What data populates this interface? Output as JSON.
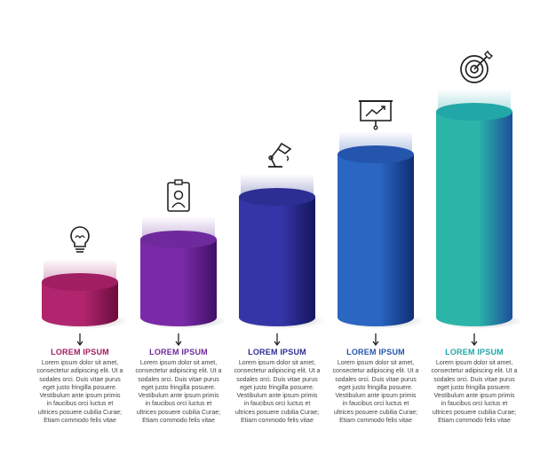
{
  "steps": [
    {
      "icon": "lightbulb-icon",
      "level": 1,
      "title": "LOREM IPSUM",
      "body": "Lorem ipsum dolor sit amet, consectetur adipiscing elit. Ut a sodales orci. Duis vitae purus eget justo fringilla posuere. Vestibulum ante ipsum primis in faucibus orci luctus et ultrices posuere cubilia Curae; Etiam commodo felis vitae",
      "color_light": "#b0256e",
      "color_dark": "#6a0c3c",
      "color_top": "#a11e63"
    },
    {
      "icon": "id-badge-icon",
      "level": 2,
      "title": "LOREM IPSUM",
      "body": "Lorem ipsum dolor sit amet, consectetur adipiscing elit. Ut a sodales orci. Duis vitae purus eget justo fringilla posuere. Vestibulum ante ipsum primis in faucibus orci luctus et ultrices posuere cubilia Curae; Etiam commodo felis vitae",
      "color_light": "#7a2aa8",
      "color_dark": "#3f0f66",
      "color_top": "#6e2a9c"
    },
    {
      "icon": "desk-lamp-icon",
      "level": 3,
      "title": "LOREM IPSUM",
      "body": "Lorem ipsum dolor sit amet, consectetur adipiscing elit. Ut a sodales orci. Duis vitae purus eget justo fringilla posuere. Vestibulum ante ipsum primis in faucibus orci luctus et ultrices posuere cubilia Curae; Etiam commodo felis vitae",
      "color_light": "#3535a8",
      "color_dark": "#15165e",
      "color_top": "#2c2e93"
    },
    {
      "icon": "presentation-board-icon",
      "level": 4,
      "title": "LOREM IPSUM",
      "body": "Lorem ipsum dolor sit amet, consectetur adipiscing elit. Ut a sodales orci. Duis vitae purus eget justo fringilla posuere. Vestibulum ante ipsum primis in faucibus orci luctus et ultrices posuere cubilia Curae; Etiam commodo felis vitae",
      "color_light": "#2a66c2",
      "color_dark": "#0f2e72",
      "color_top": "#2455ad"
    },
    {
      "icon": "target-icon",
      "level": 5,
      "title": "LOREM IPSUM",
      "body": "Lorem ipsum dolor sit amet, consectetur adipiscing elit. Ut a sodales orci. Duis vitae purus eget justo fringilla posuere. Vestibulum ante ipsum primis in faucibus orci luctus et ultrices posuere cubilia Curae; Etiam commodo felis vitae",
      "color_light": "#2bb5a8",
      "color_dark": "#1d4f9a",
      "color_top": "#21a7a8"
    }
  ]
}
